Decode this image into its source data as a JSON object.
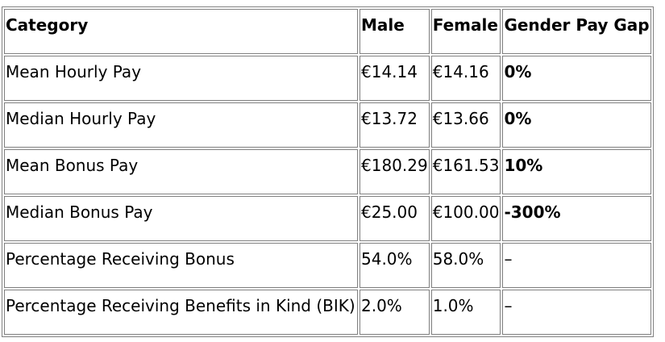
{
  "table": {
    "headers": [
      "Category",
      "Male",
      "Female",
      "Gender Pay Gap"
    ],
    "rows": [
      {
        "category": "Mean Hourly Pay",
        "male": "€14.14",
        "female": "€14.16",
        "gap": "0%"
      },
      {
        "category": "Median Hourly Pay",
        "male": "€13.72",
        "female": "€13.66",
        "gap": "0%"
      },
      {
        "category": "Mean Bonus Pay",
        "male": "€180.29",
        "female": "€161.53",
        "gap": "10%"
      },
      {
        "category": "Median Bonus Pay",
        "male": "€25.00",
        "female": "€100.00",
        "gap": "-300%"
      },
      {
        "category": "Percentage Receiving Bonus",
        "male": "54.0%",
        "female": "58.0%",
        "gap": "–"
      },
      {
        "category": "Percentage Receiving Benefits in Kind (BIK)",
        "male": "2.0%",
        "female": "1.0%",
        "gap": "–"
      }
    ]
  }
}
